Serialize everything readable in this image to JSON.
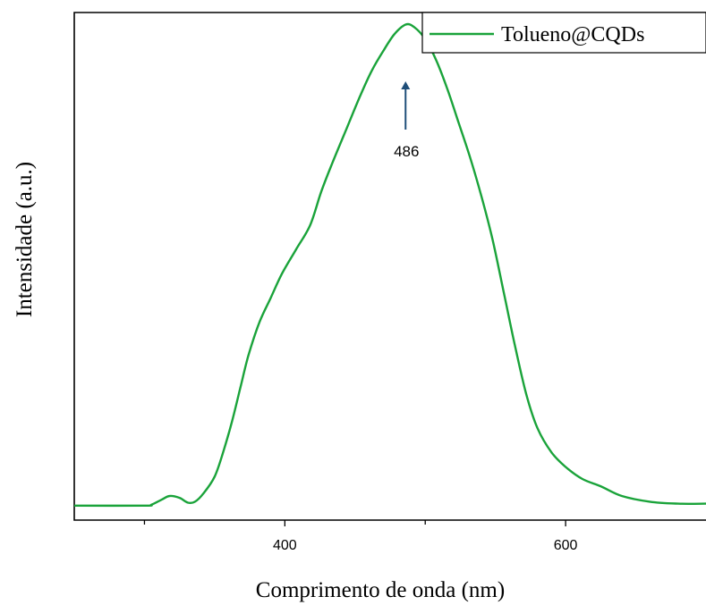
{
  "chart_data": {
    "type": "line",
    "title": "",
    "xlabel": "Comprimento de onda (nm)",
    "ylabel": "Intensidade (a.u.)",
    "xlim": [
      250,
      700
    ],
    "ylim": [
      -0.03,
      1.02
    ],
    "y_ticks_shown": false,
    "grid": false,
    "x_ticks": [
      {
        "value": 300,
        "label": ""
      },
      {
        "value": 400,
        "label": "400"
      },
      {
        "value": 500,
        "label": ""
      },
      {
        "value": 600,
        "label": "600"
      }
    ],
    "legend": {
      "position": "top-right",
      "entries": [
        "Tolueno@CQDs"
      ]
    },
    "series": [
      {
        "name": "Tolueno@CQDs",
        "color": "#1aa33a",
        "points": [
          [
            250,
            0.0
          ],
          [
            300,
            0.0
          ],
          [
            305,
            0.002
          ],
          [
            312,
            0.012
          ],
          [
            318,
            0.02
          ],
          [
            325,
            0.016
          ],
          [
            331,
            0.006
          ],
          [
            336,
            0.008
          ],
          [
            342,
            0.025
          ],
          [
            350,
            0.06
          ],
          [
            356,
            0.11
          ],
          [
            362,
            0.17
          ],
          [
            368,
            0.24
          ],
          [
            374,
            0.31
          ],
          [
            382,
            0.38
          ],
          [
            390,
            0.43
          ],
          [
            398,
            0.48
          ],
          [
            408,
            0.53
          ],
          [
            418,
            0.58
          ],
          [
            426,
            0.65
          ],
          [
            434,
            0.71
          ],
          [
            444,
            0.78
          ],
          [
            454,
            0.85
          ],
          [
            462,
            0.9
          ],
          [
            470,
            0.94
          ],
          [
            478,
            0.975
          ],
          [
            486,
            0.995
          ],
          [
            492,
            0.99
          ],
          [
            500,
            0.965
          ],
          [
            508,
            0.92
          ],
          [
            516,
            0.86
          ],
          [
            524,
            0.79
          ],
          [
            532,
            0.72
          ],
          [
            540,
            0.64
          ],
          [
            548,
            0.55
          ],
          [
            556,
            0.44
          ],
          [
            564,
            0.33
          ],
          [
            572,
            0.23
          ],
          [
            580,
            0.16
          ],
          [
            590,
            0.11
          ],
          [
            600,
            0.08
          ],
          [
            612,
            0.055
          ],
          [
            625,
            0.04
          ],
          [
            640,
            0.02
          ],
          [
            660,
            0.008
          ],
          [
            680,
            0.004
          ],
          [
            700,
            0.004
          ]
        ]
      }
    ],
    "annotations": [
      {
        "text": "486",
        "x": 486,
        "arrow": "up",
        "arrow_color": "#1f4e79"
      }
    ]
  }
}
